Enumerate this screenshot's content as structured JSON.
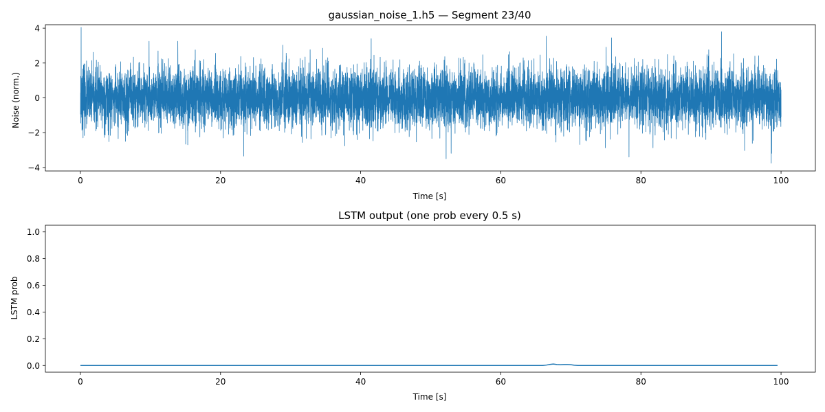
{
  "chart_data": [
    {
      "type": "line",
      "title": "gaussian_noise_1.h5 — Segment 23/40",
      "xlabel": "Time [s]",
      "ylabel": "Noise (norm.)",
      "xlim": [
        -5,
        104.9
      ],
      "ylim": [
        -4.2,
        4.2
      ],
      "xticks": [
        0,
        20,
        40,
        60,
        80,
        100
      ],
      "yticks": [
        -4,
        -2,
        0,
        2,
        4
      ],
      "grid": false,
      "color": "#1f77b4",
      "series": [
        {
          "x_range": [
            0,
            100
          ],
          "observed_min": -3.75,
          "observed_max": 4.05,
          "peaks": [
            {
              "x": 0.1,
              "y": 4.05
            },
            {
              "x": 98.6,
              "y": -3.75
            },
            {
              "x": 52.2,
              "y": -3.5
            },
            {
              "x": 91.5,
              "y": 3.8
            },
            {
              "x": 23.3,
              "y": -3.35
            },
            {
              "x": 66.5,
              "y": 3.55
            },
            {
              "x": 78.3,
              "y": -3.4
            },
            {
              "x": 13.9,
              "y": 3.25
            },
            {
              "x": 9.8,
              "y": 3.25
            },
            {
              "x": 41.5,
              "y": 3.4
            },
            {
              "x": 75.8,
              "y": 3.45
            }
          ]
        }
      ]
    },
    {
      "type": "line",
      "title": "LSTM output (one prob every 0.5 s)",
      "xlabel": "Time [s]",
      "ylabel": "LSTM prob",
      "xlim": [
        -5,
        104.9
      ],
      "ylim": [
        -0.05,
        1.05
      ],
      "xticks": [
        0,
        20,
        40,
        60,
        80,
        100
      ],
      "yticks": [
        0.0,
        0.2,
        0.4,
        0.6,
        0.8,
        1.0
      ],
      "grid": false,
      "color": "#1f77b4",
      "series": [
        {
          "x": [
            0,
            66.0,
            66.5,
            67.0,
            67.5,
            68.0,
            68.5,
            69.0,
            69.5,
            70.0,
            70.5,
            71.0,
            99.5
          ],
          "y": [
            0.0,
            0.0,
            0.003,
            0.008,
            0.011,
            0.007,
            0.006,
            0.007,
            0.007,
            0.006,
            0.002,
            0.0,
            0.0
          ]
        }
      ]
    }
  ]
}
